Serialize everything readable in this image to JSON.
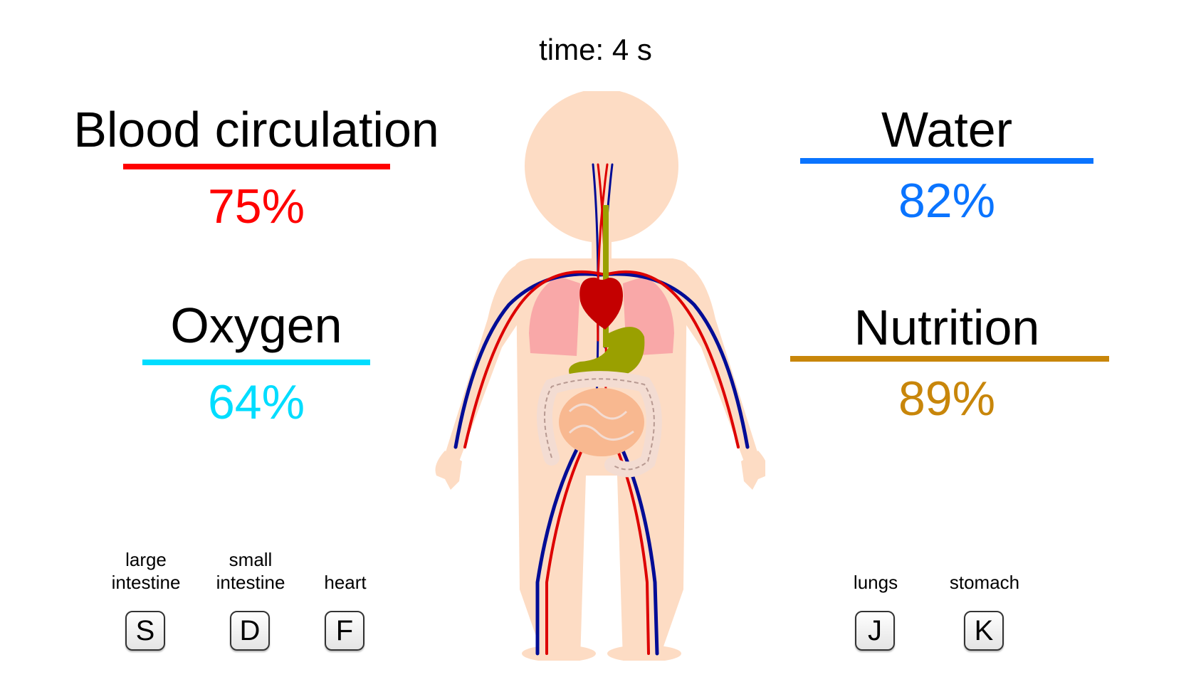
{
  "timer": {
    "text": "time: 4 s"
  },
  "stats": {
    "blood": {
      "title": "Blood circulation",
      "value": "75%",
      "percent": 75,
      "color": "#ff0000"
    },
    "oxygen": {
      "title": "Oxygen",
      "value": "64%",
      "percent": 64,
      "color": "#00ddff"
    },
    "water": {
      "title": "Water",
      "value": "82%",
      "percent": 82,
      "color": "#0a74ff"
    },
    "nutrition": {
      "title": "Nutrition",
      "value": "89%",
      "percent": 89,
      "color": "#c8860a"
    }
  },
  "keys": {
    "large_intestine": {
      "label": "large\nintestine",
      "key": "S"
    },
    "small_intestine": {
      "label": "small\nintestine",
      "key": "D"
    },
    "heart": {
      "label": "heart",
      "key": "F"
    },
    "lungs": {
      "label": "lungs",
      "key": "J"
    },
    "stomach": {
      "label": "stomach",
      "key": "K"
    }
  },
  "colors": {
    "skin": "#fddcc4",
    "artery": "#dd0000",
    "vein": "#000c96",
    "lungs": "#f9a8a8",
    "heart": "#c40000",
    "stomach": "#9aa000",
    "small_intestine": "#f8b890",
    "large_intestine": "#f3dcd2"
  }
}
